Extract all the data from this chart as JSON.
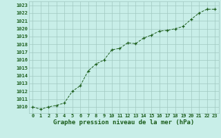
{
  "x": [
    0,
    1,
    2,
    3,
    4,
    5,
    6,
    7,
    8,
    9,
    10,
    11,
    12,
    13,
    14,
    15,
    16,
    17,
    18,
    19,
    20,
    21,
    22,
    23
  ],
  "y": [
    1010.0,
    1009.7,
    1010.0,
    1010.2,
    1010.5,
    1012.0,
    1012.7,
    1014.6,
    1015.5,
    1016.0,
    1017.3,
    1017.5,
    1018.2,
    1018.1,
    1018.8,
    1019.2,
    1019.7,
    1019.8,
    1020.0,
    1020.3,
    1021.2,
    1022.0,
    1022.5,
    1022.5
  ],
  "line_color": "#1a5c1a",
  "marker": "+",
  "bg_color": "#c8eee8",
  "grid_color": "#a0c8c0",
  "xlabel": "Graphe pression niveau de la mer (hPa)",
  "xlabel_color": "#1a5c1a",
  "tick_color": "#1a5c1a",
  "ylim": [
    1009.2,
    1023.5
  ],
  "ytick_start": 1010,
  "ytick_end": 1023,
  "ytick_step": 1,
  "label_fontsize": 6.5,
  "tick_fontsize": 5.0
}
